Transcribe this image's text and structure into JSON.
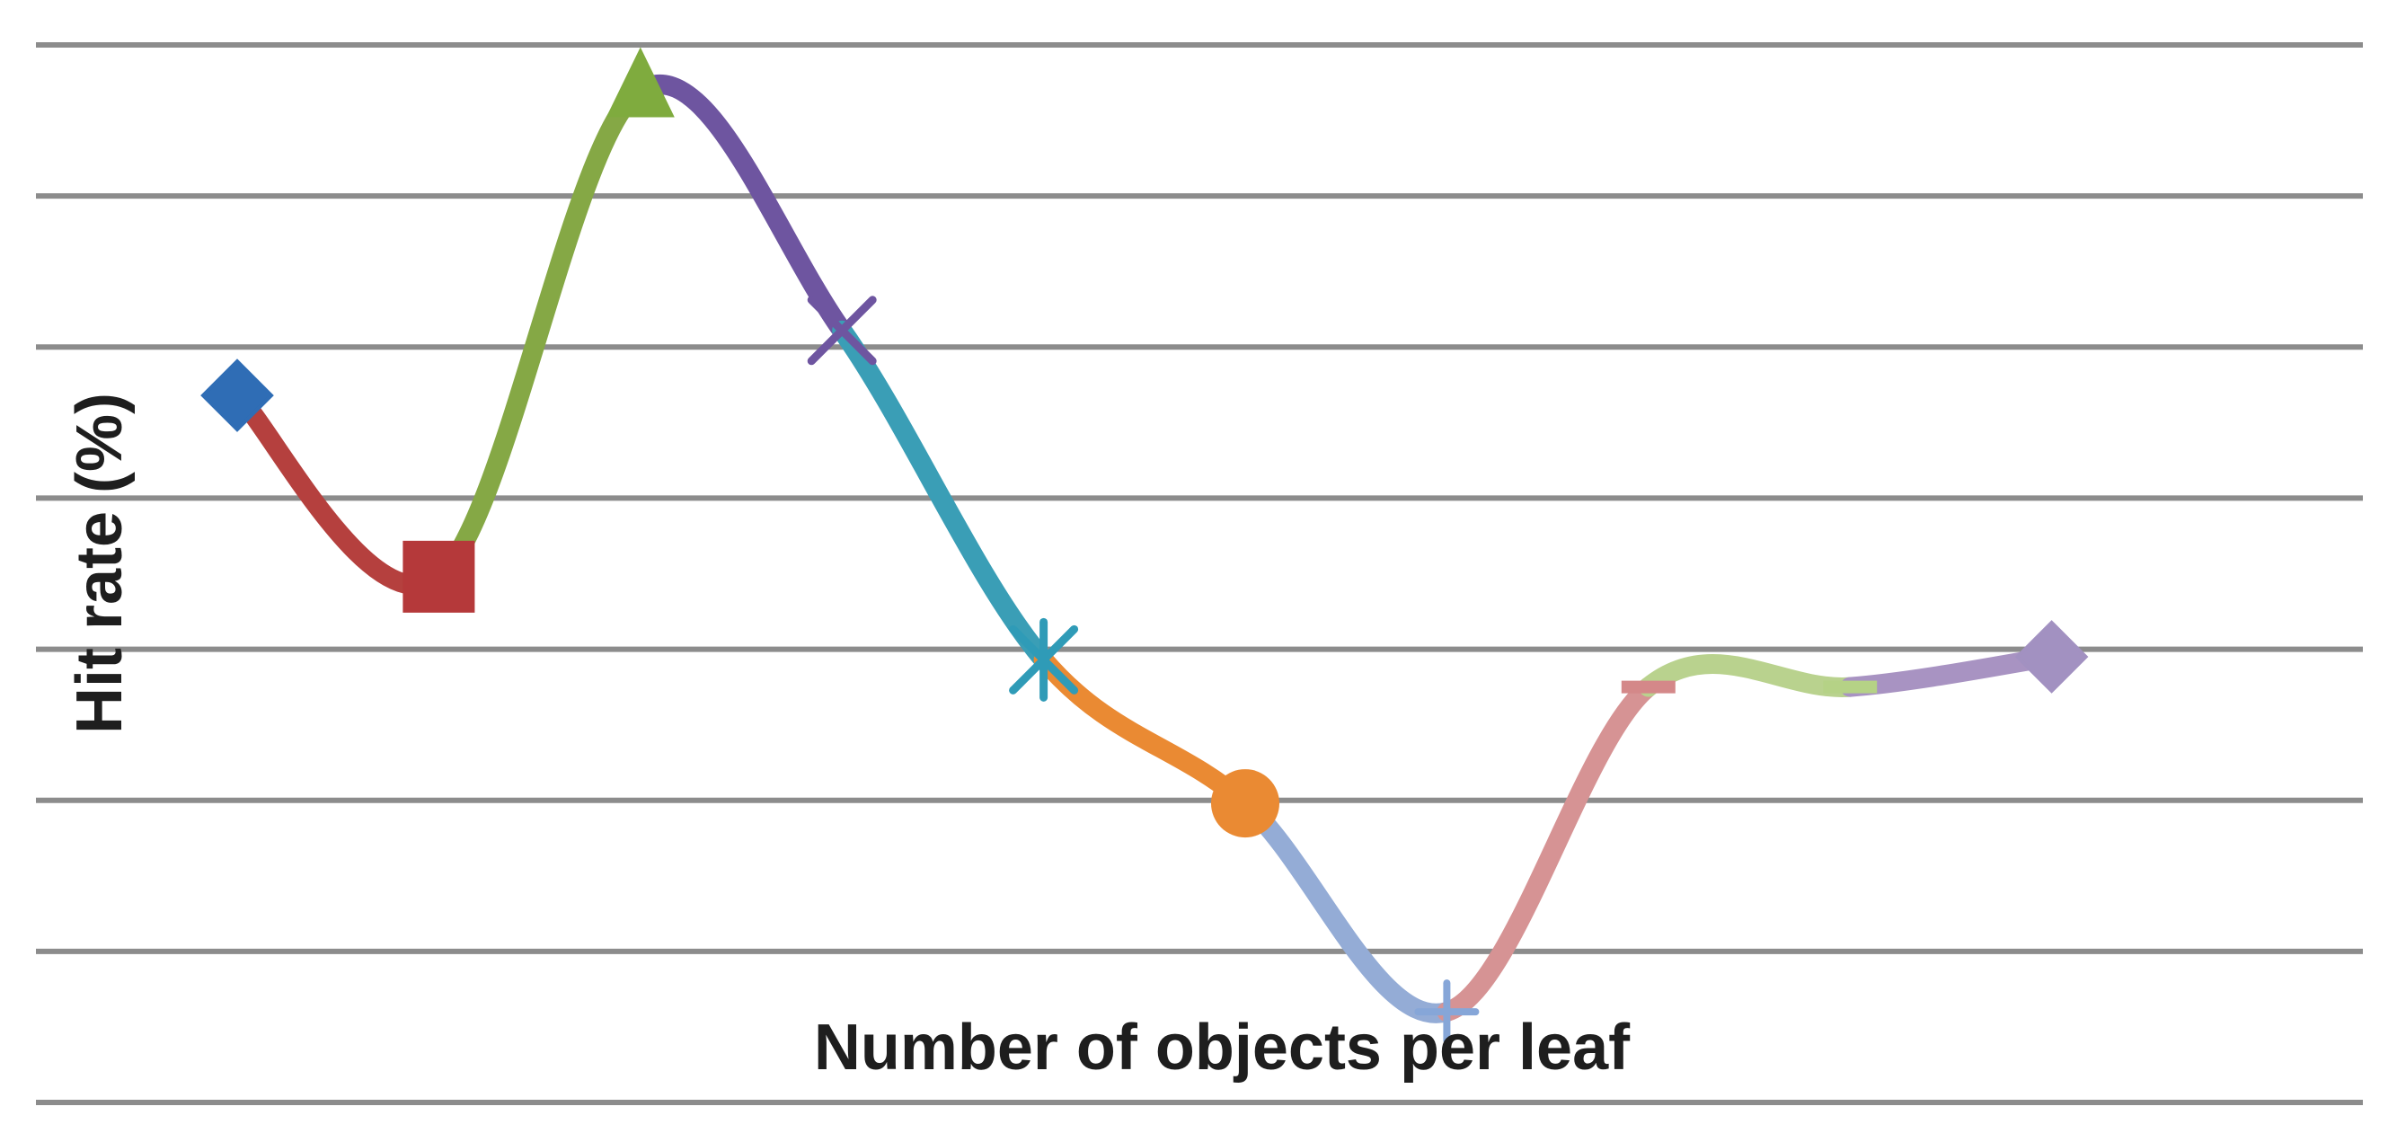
{
  "chart_data": {
    "type": "line",
    "xlabel": "Number of objects per leaf",
    "ylabel": "Hit rate (%)",
    "ylim": [
      0,
      7
    ],
    "grid": true,
    "line_style": "smooth",
    "points": [
      {
        "x": 1,
        "y": 4.68,
        "marker": "diamond",
        "color": "#2f6db5",
        "segment_color": "#b5403e"
      },
      {
        "x": 2,
        "y": 3.48,
        "marker": "square",
        "color": "#b5393a",
        "segment_color": "#85a845"
      },
      {
        "x": 3,
        "y": 6.7,
        "marker": "triangle",
        "color": "#7fab3e",
        "segment_color": "#6e55a0"
      },
      {
        "x": 4,
        "y": 5.11,
        "marker": "x",
        "color": "#6e55a0",
        "segment_color": "#3a9eb6"
      },
      {
        "x": 5,
        "y": 2.93,
        "marker": "star",
        "color": "#2f9bb7",
        "segment_color": "#ea8a33"
      },
      {
        "x": 6,
        "y": 1.98,
        "marker": "circle",
        "color": "#ea8a33",
        "segment_color": "#94acd6"
      },
      {
        "x": 7,
        "y": 0.6,
        "marker": "plus",
        "color": "#86a6d8",
        "segment_color": "#d69394"
      },
      {
        "x": 8,
        "y": 2.75,
        "marker": "dash",
        "color": "#d48889",
        "segment_color": "#b9d28e"
      },
      {
        "x": 9,
        "y": 2.75,
        "marker": "dash",
        "color": "#b5d286",
        "segment_color": "#a893c2"
      },
      {
        "x": 10,
        "y": 2.95,
        "marker": "diamond",
        "color": "#a291c1",
        "segment_color": null
      }
    ]
  }
}
